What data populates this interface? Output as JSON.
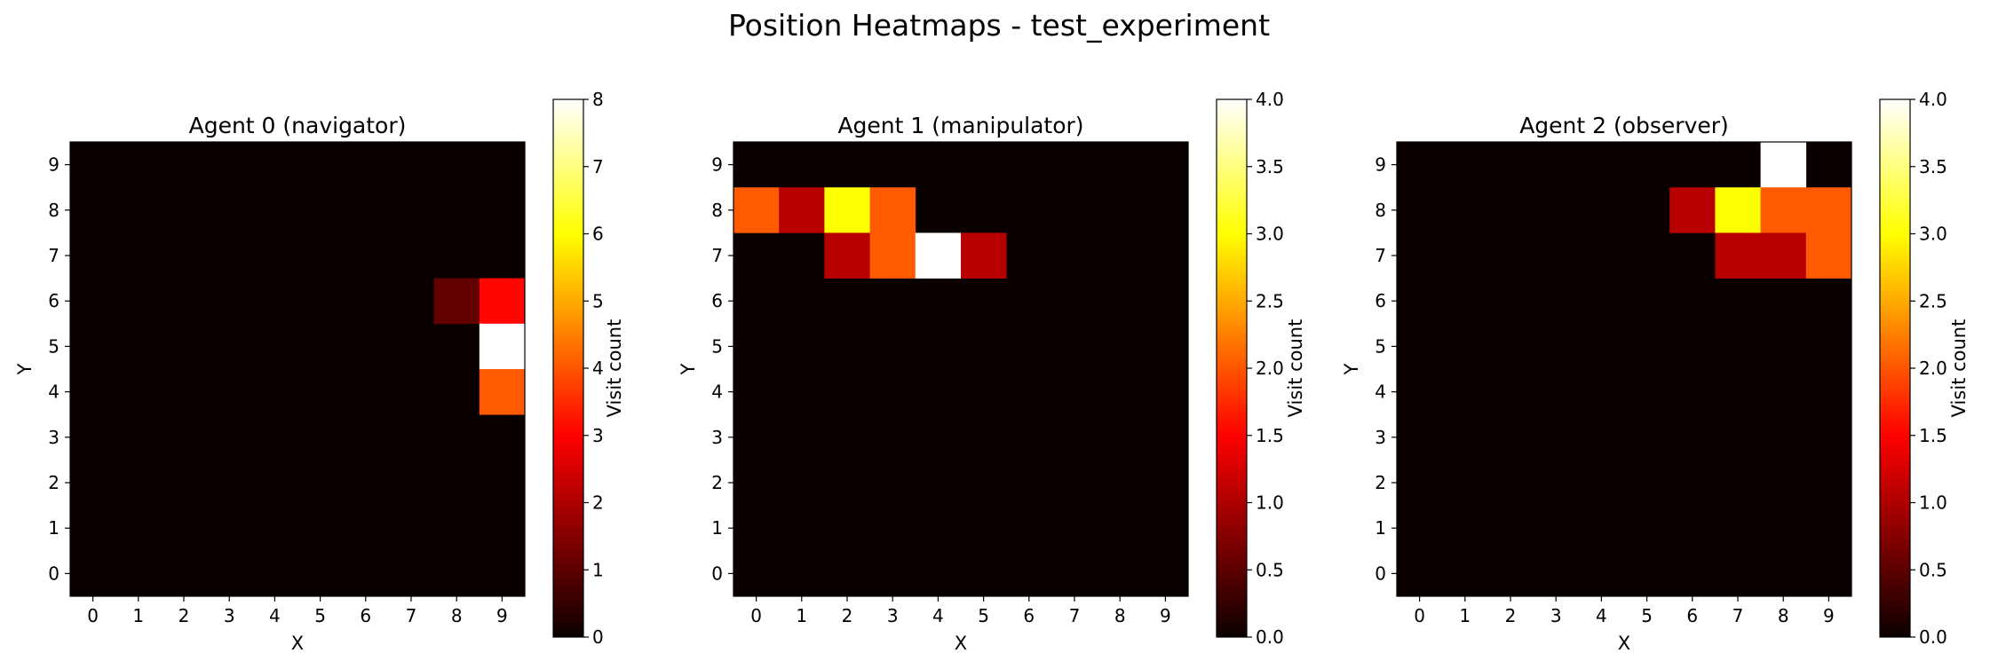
{
  "chart_data": {
    "type": "heatmap",
    "suptitle": "Position Heatmaps - test_experiment",
    "colormap": "hot",
    "panels": [
      {
        "title": "Agent 0 (navigator)",
        "xlabel": "X",
        "ylabel": "Y",
        "colorbar_label": "Visit count",
        "x": [
          0,
          1,
          2,
          3,
          4,
          5,
          6,
          7,
          8,
          9
        ],
        "y": [
          0,
          1,
          2,
          3,
          4,
          5,
          6,
          7,
          8,
          9
        ],
        "vmin": 0,
        "vmax": 8,
        "colorbar_ticks": [
          "0",
          "1",
          "2",
          "3",
          "4",
          "5",
          "6",
          "7",
          "8"
        ],
        "cells": [
          {
            "x": 8,
            "y": 6,
            "value": 1
          },
          {
            "x": 9,
            "y": 6,
            "value": 3
          },
          {
            "x": 9,
            "y": 5,
            "value": 8
          },
          {
            "x": 9,
            "y": 4,
            "value": 4
          }
        ]
      },
      {
        "title": "Agent 1 (manipulator)",
        "xlabel": "X",
        "ylabel": "Y",
        "colorbar_label": "Visit count",
        "x": [
          0,
          1,
          2,
          3,
          4,
          5,
          6,
          7,
          8,
          9
        ],
        "y": [
          0,
          1,
          2,
          3,
          4,
          5,
          6,
          7,
          8,
          9
        ],
        "vmin": 0,
        "vmax": 4,
        "colorbar_ticks": [
          "0.0",
          "0.5",
          "1.0",
          "1.5",
          "2.0",
          "2.5",
          "3.0",
          "3.5",
          "4.0"
        ],
        "cells": [
          {
            "x": 0,
            "y": 8,
            "value": 2
          },
          {
            "x": 1,
            "y": 8,
            "value": 1
          },
          {
            "x": 2,
            "y": 8,
            "value": 3
          },
          {
            "x": 3,
            "y": 8,
            "value": 2
          },
          {
            "x": 2,
            "y": 7,
            "value": 1
          },
          {
            "x": 3,
            "y": 7,
            "value": 2
          },
          {
            "x": 4,
            "y": 7,
            "value": 4
          },
          {
            "x": 5,
            "y": 7,
            "value": 1
          }
        ]
      },
      {
        "title": "Agent 2 (observer)",
        "xlabel": "X",
        "ylabel": "Y",
        "colorbar_label": "Visit count",
        "x": [
          0,
          1,
          2,
          3,
          4,
          5,
          6,
          7,
          8,
          9
        ],
        "y": [
          0,
          1,
          2,
          3,
          4,
          5,
          6,
          7,
          8,
          9
        ],
        "vmin": 0,
        "vmax": 4,
        "colorbar_ticks": [
          "0.0",
          "0.5",
          "1.0",
          "1.5",
          "2.0",
          "2.5",
          "3.0",
          "3.5",
          "4.0"
        ],
        "cells": [
          {
            "x": 8,
            "y": 9,
            "value": 4
          },
          {
            "x": 6,
            "y": 8,
            "value": 1
          },
          {
            "x": 7,
            "y": 8,
            "value": 3
          },
          {
            "x": 8,
            "y": 8,
            "value": 2
          },
          {
            "x": 9,
            "y": 8,
            "value": 2
          },
          {
            "x": 7,
            "y": 7,
            "value": 1
          },
          {
            "x": 8,
            "y": 7,
            "value": 1
          },
          {
            "x": 9,
            "y": 7,
            "value": 2
          }
        ]
      }
    ]
  }
}
